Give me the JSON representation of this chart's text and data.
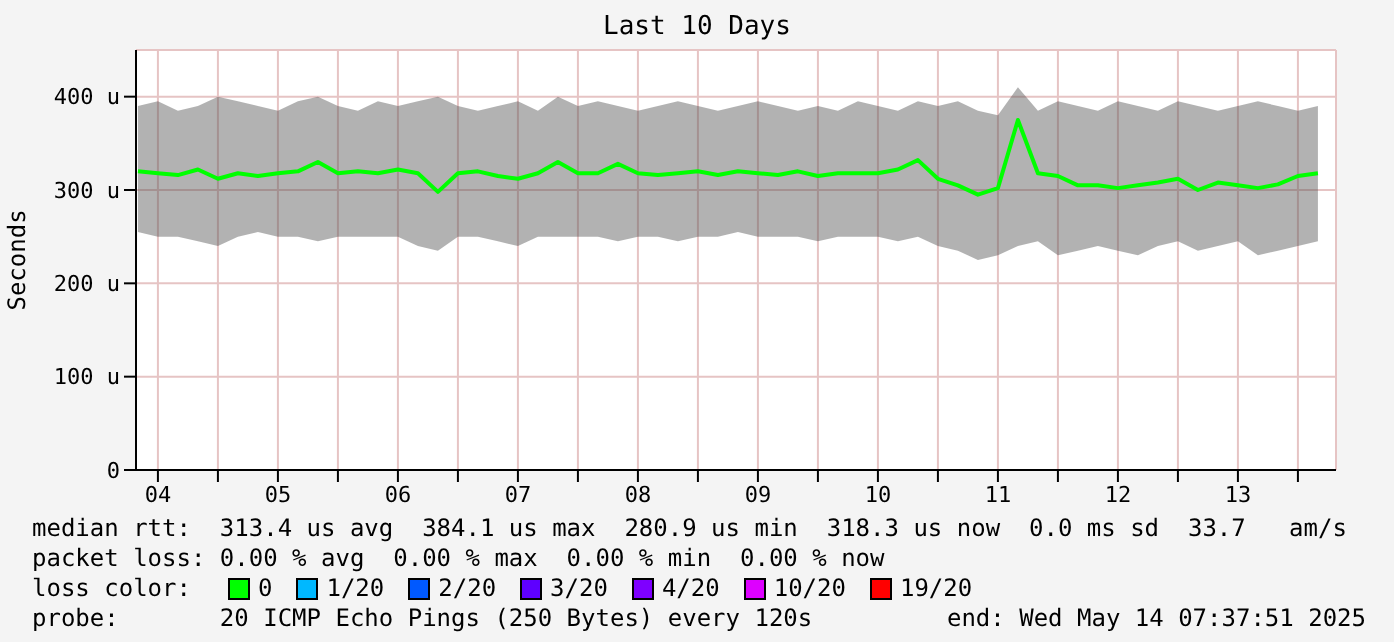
{
  "chart_data": {
    "type": "line",
    "title": "Last 10 Days",
    "ylabel": "Seconds",
    "x": [
      "2025-05-04T08:00",
      "2025-05-04T12:00",
      "2025-05-04T16:00",
      "2025-05-04T20:00",
      "2025-05-05T00:00",
      "2025-05-05T04:00",
      "2025-05-05T08:00",
      "2025-05-05T12:00",
      "2025-05-05T16:00",
      "2025-05-05T20:00",
      "2025-05-06T00:00",
      "2025-05-06T04:00",
      "2025-05-06T08:00",
      "2025-05-06T12:00",
      "2025-05-06T16:00",
      "2025-05-06T20:00",
      "2025-05-07T00:00",
      "2025-05-07T04:00",
      "2025-05-07T08:00",
      "2025-05-07T12:00",
      "2025-05-07T16:00",
      "2025-05-07T20:00",
      "2025-05-08T00:00",
      "2025-05-08T04:00",
      "2025-05-08T08:00",
      "2025-05-08T12:00",
      "2025-05-08T16:00",
      "2025-05-08T20:00",
      "2025-05-09T00:00",
      "2025-05-09T04:00",
      "2025-05-09T08:00",
      "2025-05-09T12:00",
      "2025-05-09T16:00",
      "2025-05-09T20:00",
      "2025-05-10T00:00",
      "2025-05-10T04:00",
      "2025-05-10T08:00",
      "2025-05-10T12:00",
      "2025-05-10T16:00",
      "2025-05-10T20:00",
      "2025-05-11T00:00",
      "2025-05-11T04:00",
      "2025-05-11T08:00",
      "2025-05-11T12:00",
      "2025-05-11T16:00",
      "2025-05-11T20:00",
      "2025-05-12T00:00",
      "2025-05-12T04:00",
      "2025-05-12T08:00",
      "2025-05-12T12:00",
      "2025-05-12T16:00",
      "2025-05-12T20:00",
      "2025-05-13T00:00",
      "2025-05-13T04:00",
      "2025-05-13T08:00",
      "2025-05-13T12:00",
      "2025-05-13T16:00",
      "2025-05-13T20:00",
      "2025-05-14T00:00",
      "2025-05-14T04:00"
    ],
    "series": [
      {
        "name": "0",
        "color": "#00ff00",
        "values": [
          320,
          318,
          316,
          322,
          312,
          318,
          315,
          318,
          320,
          330,
          318,
          320,
          318,
          322,
          318,
          298,
          318,
          320,
          315,
          312,
          318,
          330,
          318,
          318,
          328,
          318,
          316,
          318,
          320,
          316,
          320,
          318,
          316,
          320,
          315,
          318,
          318,
          318,
          322,
          332,
          312,
          305,
          295,
          302,
          375,
          318,
          315,
          305,
          305,
          302,
          305,
          308,
          312,
          300,
          308,
          305,
          302,
          306,
          315,
          318
        ],
        "lower": [
          255,
          250,
          250,
          245,
          240,
          250,
          255,
          250,
          250,
          245,
          250,
          250,
          250,
          250,
          240,
          235,
          250,
          250,
          245,
          240,
          250,
          250,
          250,
          250,
          245,
          250,
          250,
          245,
          250,
          250,
          255,
          250,
          250,
          250,
          245,
          250,
          250,
          250,
          245,
          250,
          240,
          235,
          225,
          230,
          240,
          245,
          230,
          235,
          240,
          235,
          230,
          240,
          245,
          235,
          240,
          245,
          230,
          235,
          240,
          245
        ],
        "upper": [
          390,
          395,
          385,
          390,
          400,
          395,
          390,
          385,
          395,
          400,
          390,
          385,
          395,
          390,
          395,
          400,
          390,
          385,
          390,
          395,
          385,
          400,
          390,
          395,
          390,
          385,
          390,
          395,
          390,
          385,
          390,
          395,
          390,
          385,
          390,
          385,
          395,
          390,
          385,
          395,
          390,
          395,
          385,
          380,
          410,
          385,
          395,
          390,
          385,
          395,
          390,
          385,
          395,
          390,
          385,
          390,
          395,
          390,
          385,
          390
        ]
      },
      {
        "name": "1/20",
        "color": "#00b8ff",
        "values": [
          null,
          null,
          null,
          null,
          null,
          null,
          null,
          null,
          null,
          null,
          null,
          null,
          null,
          null,
          null,
          null,
          null,
          null,
          null,
          null,
          null,
          null,
          null,
          null,
          null,
          null,
          null,
          null,
          null,
          null,
          null,
          null,
          null,
          null,
          null,
          null,
          null,
          null,
          null,
          null,
          null,
          null,
          null,
          null,
          null,
          null,
          null,
          null,
          null,
          null,
          null,
          null,
          null,
          null,
          null,
          null,
          null,
          null,
          null,
          null
        ]
      },
      {
        "name": "2/20",
        "color": "#0059ff",
        "values": [
          null,
          null,
          null,
          null,
          null,
          null,
          null,
          null,
          null,
          null,
          null,
          null,
          null,
          null,
          null,
          null,
          null,
          null,
          null,
          null,
          null,
          null,
          null,
          null,
          null,
          null,
          null,
          null,
          null,
          null,
          null,
          null,
          null,
          null,
          null,
          null,
          null,
          null,
          null,
          null,
          null,
          null,
          null,
          null,
          null,
          null,
          null,
          null,
          null,
          null,
          null,
          null,
          null,
          null,
          null,
          null,
          null,
          null,
          null,
          null
        ]
      },
      {
        "name": "3/20",
        "color": "#5e00ff",
        "values": [
          null,
          null,
          null,
          null,
          null,
          null,
          null,
          null,
          null,
          null,
          null,
          null,
          null,
          null,
          null,
          null,
          null,
          null,
          null,
          null,
          null,
          null,
          null,
          null,
          null,
          null,
          null,
          null,
          null,
          null,
          null,
          null,
          null,
          null,
          null,
          null,
          null,
          null,
          null,
          null,
          null,
          null,
          null,
          null,
          null,
          null,
          null,
          null,
          null,
          null,
          null,
          null,
          null,
          null,
          null,
          null,
          null,
          null,
          null,
          null
        ]
      },
      {
        "name": "4/20",
        "color": "#7e00ff",
        "values": [
          null,
          null,
          null,
          null,
          null,
          null,
          null,
          null,
          null,
          null,
          null,
          null,
          null,
          null,
          null,
          null,
          null,
          null,
          null,
          null,
          null,
          null,
          null,
          null,
          null,
          null,
          null,
          null,
          null,
          null,
          null,
          null,
          null,
          null,
          null,
          null,
          null,
          null,
          null,
          null,
          null,
          null,
          null,
          null,
          null,
          null,
          null,
          null,
          null,
          null,
          null,
          null,
          null,
          null,
          null,
          null,
          null,
          null,
          null,
          null
        ]
      },
      {
        "name": "10/20",
        "color": "#dd00ff",
        "values": [
          null,
          null,
          null,
          null,
          null,
          null,
          null,
          null,
          null,
          null,
          null,
          null,
          null,
          null,
          null,
          null,
          null,
          null,
          null,
          null,
          null,
          null,
          null,
          null,
          null,
          null,
          null,
          null,
          null,
          null,
          null,
          null,
          null,
          null,
          null,
          null,
          null,
          null,
          null,
          null,
          null,
          null,
          null,
          null,
          null,
          null,
          null,
          null,
          null,
          null,
          null,
          null,
          null,
          null,
          null,
          null,
          null,
          null,
          null,
          null
        ]
      },
      {
        "name": "19/20",
        "color": "#ff0000",
        "values": [
          null,
          null,
          null,
          null,
          null,
          null,
          null,
          null,
          null,
          null,
          null,
          null,
          null,
          null,
          null,
          null,
          null,
          null,
          null,
          null,
          null,
          null,
          null,
          null,
          null,
          null,
          null,
          null,
          null,
          null,
          null,
          null,
          null,
          null,
          null,
          null,
          null,
          null,
          null,
          null,
          null,
          null,
          null,
          null,
          null,
          null,
          null,
          null,
          null,
          null,
          null,
          null,
          null,
          null,
          null,
          null,
          null,
          null,
          null,
          null
        ]
      }
    ],
    "legend_title": "loss color:",
    "legend": "bottom",
    "xlim": [
      "2025-05-04T07:37",
      "2025-05-14T07:37"
    ],
    "xticks": [
      {
        "value": "2025-05-04T12:00",
        "label": "04"
      },
      {
        "value": "2025-05-05T00:00",
        "label": null
      },
      {
        "value": "2025-05-05T12:00",
        "label": "05"
      },
      {
        "value": "2025-05-06T00:00",
        "label": null
      },
      {
        "value": "2025-05-06T12:00",
        "label": "06"
      },
      {
        "value": "2025-05-07T00:00",
        "label": null
      },
      {
        "value": "2025-05-07T12:00",
        "label": "07"
      },
      {
        "value": "2025-05-08T00:00",
        "label": null
      },
      {
        "value": "2025-05-08T12:00",
        "label": "08"
      },
      {
        "value": "2025-05-09T00:00",
        "label": null
      },
      {
        "value": "2025-05-09T12:00",
        "label": "09"
      },
      {
        "value": "2025-05-10T00:00",
        "label": null
      },
      {
        "value": "2025-05-10T12:00",
        "label": "10"
      },
      {
        "value": "2025-05-11T00:00",
        "label": null
      },
      {
        "value": "2025-05-11T12:00",
        "label": "11"
      },
      {
        "value": "2025-05-12T00:00",
        "label": null
      },
      {
        "value": "2025-05-12T12:00",
        "label": "12"
      },
      {
        "value": "2025-05-13T00:00",
        "label": null
      },
      {
        "value": "2025-05-13T12:00",
        "label": "13"
      },
      {
        "value": "2025-05-14T00:00",
        "label": null
      }
    ],
    "ylim": [
      0,
      450
    ],
    "yticks": [
      0,
      {
        "value": 100,
        "label": "100 u"
      },
      {
        "value": 200,
        "label": "200 u"
      },
      {
        "value": 300,
        "label": "300 u"
      },
      {
        "value": 400,
        "label": "400 u"
      }
    ],
    "grid": true,
    "marker": "none",
    "line_style": "solid",
    "annotations": [
      "median rtt:  313.4 us avg  384.1 us max  280.9 us min  318.3 us now  0.0 ms sd  33.7   am/s",
      "packet loss: 0.00 % avg  0.00 % max  0.00 % min  0.00 % now",
      "probe:       20 ICMP Echo Pings (250 Bytes) every 120s",
      "end: Wed May 14 07:37:51 2025"
    ]
  }
}
